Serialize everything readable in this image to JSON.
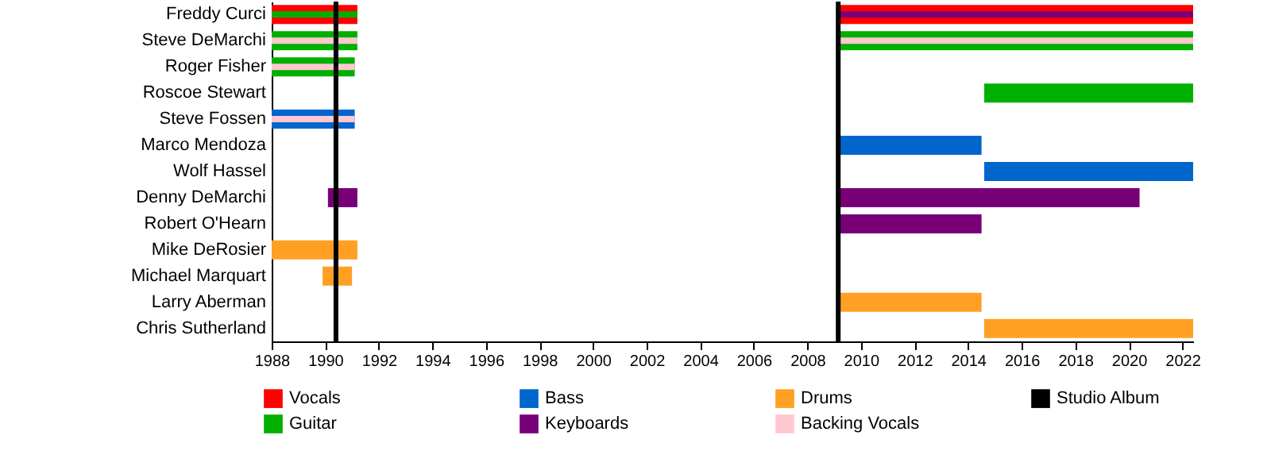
{
  "chart_data": {
    "type": "bar",
    "orientation": "horizontal",
    "legend": "bottom",
    "grid": false,
    "categories": [
      "Freddy Curci",
      "Steve DeMarchi",
      "Roger Fisher",
      "Roscoe Stewart",
      "Steve Fossen",
      "Marco Mendoza",
      "Wolf Hassel",
      "Denny DeMarchi",
      "Robert O'Hearn",
      "Mike DeRosier",
      "Michael Marquart",
      "Larry Aberman",
      "Chris Sutherland"
    ],
    "xlim": [
      1988,
      2022.4
    ],
    "xticks": [
      1988,
      1990,
      1992,
      1994,
      1996,
      1998,
      2000,
      2002,
      2004,
      2006,
      2008,
      2010,
      2012,
      2014,
      2016,
      2018,
      2020,
      2022
    ],
    "series": [
      {
        "name": "Vocals",
        "color": "#ff0000",
        "base": [
          1988,
          null,
          null,
          null,
          null,
          null,
          null,
          null,
          null,
          null,
          null,
          null,
          null
        ],
        "values": [
          3.2,
          null,
          null,
          null,
          null,
          null,
          null,
          null,
          null,
          null,
          null,
          null,
          null
        ]
      },
      {
        "color": "#ff0000",
        "base": [
          2009.1,
          null,
          null,
          null,
          null,
          null,
          null,
          null,
          null,
          null,
          null,
          null,
          null
        ],
        "values": [
          13.3,
          null,
          null,
          null,
          null,
          null,
          null,
          null,
          null,
          null,
          null,
          null,
          null
        ]
      },
      {
        "name": "Guitar",
        "color": "#00b000",
        "base": [
          null,
          1988,
          1988,
          2014.6,
          null,
          null,
          null,
          null,
          null,
          null,
          null,
          null,
          null
        ],
        "values": [
          null,
          3.2,
          3.1,
          7.8,
          null,
          null,
          null,
          null,
          null,
          null,
          null,
          null,
          null
        ]
      },
      {
        "color": "#00b000",
        "base": [
          null,
          2009.1,
          null,
          null,
          null,
          null,
          null,
          null,
          null,
          null,
          null,
          null,
          null
        ],
        "values": [
          null,
          13.3,
          null,
          null,
          null,
          null,
          null,
          null,
          null,
          null,
          null,
          null,
          null
        ]
      },
      {
        "name": "Bass",
        "color": "#0066cc",
        "base": [
          null,
          null,
          null,
          null,
          1988,
          2009.1,
          2014.6,
          null,
          null,
          null,
          null,
          null,
          null
        ],
        "values": [
          null,
          null,
          null,
          null,
          3.1,
          5.4,
          7.8,
          null,
          null,
          null,
          null,
          null,
          null
        ]
      },
      {
        "name": "Keyboards",
        "color": "#770077",
        "base": [
          null,
          null,
          null,
          null,
          null,
          null,
          null,
          1990.1,
          2009.1,
          null,
          null,
          null,
          null
        ],
        "values": [
          null,
          null,
          null,
          null,
          null,
          null,
          null,
          1.1,
          5.4,
          null,
          null,
          null,
          null
        ]
      },
      {
        "color": "#770077",
        "base": [
          null,
          null,
          null,
          null,
          null,
          null,
          null,
          2009.1,
          null,
          null,
          null,
          null,
          null
        ],
        "values": [
          null,
          null,
          null,
          null,
          null,
          null,
          null,
          11.3,
          null,
          null,
          null,
          null,
          null
        ]
      },
      {
        "name": "Drums",
        "color": "#ffa024",
        "base": [
          null,
          null,
          null,
          null,
          null,
          null,
          null,
          null,
          null,
          1988,
          1989.9,
          2009.1,
          2014.6
        ],
        "values": [
          null,
          null,
          null,
          null,
          null,
          null,
          null,
          null,
          null,
          3.2,
          1.1,
          5.4,
          7.8
        ]
      },
      {
        "name": "Backing Vocals",
        "color": "#ffc8d0",
        "base": [
          null,
          1988,
          1988,
          null,
          1988,
          null,
          null,
          null,
          null,
          null,
          null,
          null,
          null
        ],
        "values": [
          null,
          3.2,
          3.1,
          null,
          3.1,
          null,
          null,
          null,
          null,
          null,
          null,
          null,
          null
        ]
      },
      {
        "color": "#ffc8d0",
        "base": [
          null,
          2009.1,
          null,
          null,
          null,
          null,
          null,
          null,
          null,
          null,
          null,
          null,
          null
        ],
        "values": [
          null,
          13.3,
          null,
          null,
          null,
          null,
          null,
          null,
          null,
          null,
          null,
          null,
          null
        ]
      },
      {
        "color": "#00b000",
        "base": [
          1988,
          null,
          null,
          null,
          null,
          null,
          null,
          null,
          null,
          null,
          null,
          null,
          null
        ],
        "values": [
          3.2,
          null,
          null,
          null,
          null,
          null,
          null,
          null,
          null,
          null,
          null,
          null,
          null
        ]
      },
      {
        "color": "#770077",
        "base": [
          2009.1,
          null,
          null,
          null,
          null,
          null,
          null,
          null,
          null,
          null,
          null,
          null,
          null
        ],
        "values": [
          13.3,
          null,
          null,
          null,
          null,
          null,
          null,
          null,
          null,
          null,
          null,
          null,
          null
        ]
      }
    ],
    "ref_lines": [
      {
        "axis": "x",
        "value": 1990.4,
        "label": "Studio Album",
        "color": "#000000"
      },
      {
        "axis": "x",
        "value": 2009.15,
        "color": "#000000"
      }
    ]
  }
}
